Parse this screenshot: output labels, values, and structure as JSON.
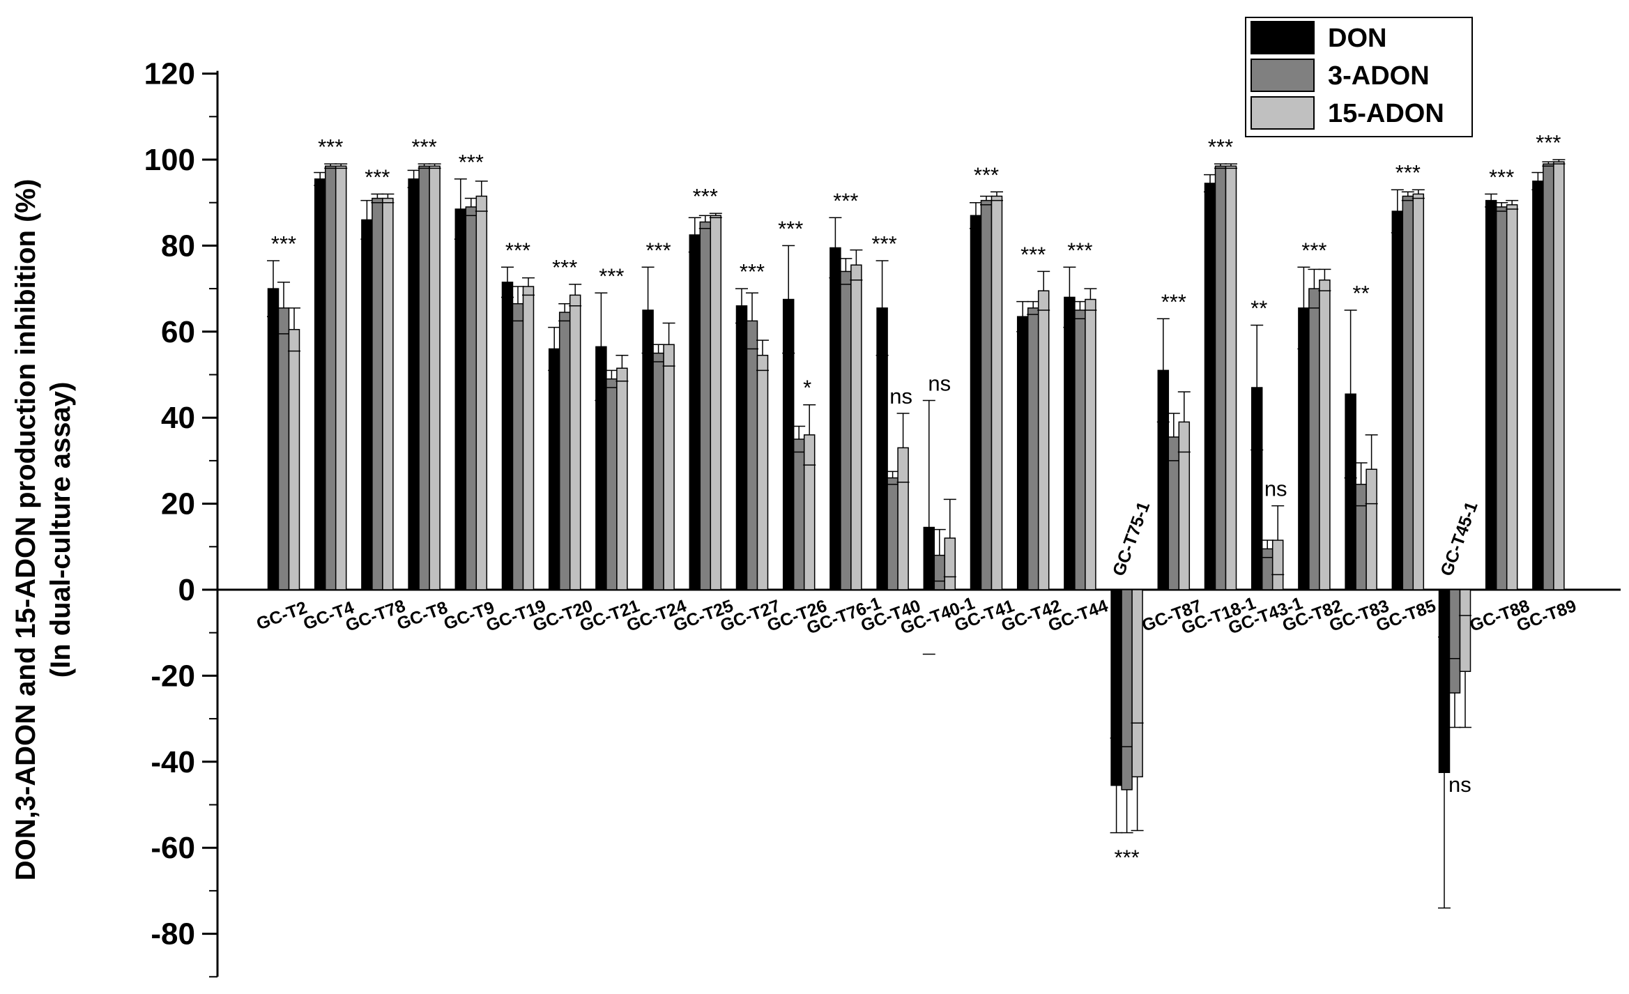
{
  "chart_data": {
    "type": "bar",
    "ylabel_lines": [
      "DON,3-ADON and 15-ADON production inhibition (%)",
      "(In dual-culture assay)"
    ],
    "xlabel": "",
    "ylim": [
      -90,
      120
    ],
    "yticks": [
      -80,
      -60,
      -40,
      -20,
      0,
      20,
      40,
      60,
      80,
      100,
      120
    ],
    "legend": {
      "position": "top-right",
      "entries": [
        "DON",
        "3-ADON",
        "15-ADON"
      ]
    },
    "series": [
      {
        "name": "DON",
        "color": "#000000"
      },
      {
        "name": "3-ADON",
        "color": "#808080"
      },
      {
        "name": "15-ADON",
        "color": "#c0c0c0"
      }
    ],
    "groups": [
      {
        "label": "GC-T2",
        "values": [
          70,
          65.5,
          60.5
        ],
        "errors": [
          6.5,
          6,
          5
        ],
        "sig": "***"
      },
      {
        "label": "GC-T4",
        "values": [
          95.5,
          98.5,
          98.5
        ],
        "errors": [
          1.5,
          0.5,
          0.5
        ],
        "sig": "***"
      },
      {
        "label": "GC-T78",
        "values": [
          86,
          91,
          91
        ],
        "errors": [
          4.5,
          1,
          1
        ],
        "sig": "***"
      },
      {
        "label": "GC-T8",
        "values": [
          95.5,
          98.5,
          98.5
        ],
        "errors": [
          2,
          0.5,
          0.5
        ],
        "sig": "***"
      },
      {
        "label": "GC-T9",
        "values": [
          88.5,
          89,
          91.5
        ],
        "errors": [
          7,
          2,
          3.5
        ],
        "sig": "***"
      },
      {
        "label": "GC-T19",
        "values": [
          71.5,
          66.5,
          70.5
        ],
        "errors": [
          3.5,
          4,
          2
        ],
        "sig": "***"
      },
      {
        "label": "GC-T20",
        "values": [
          56,
          64.5,
          68.5
        ],
        "errors": [
          5,
          2,
          2.5
        ],
        "sig": "***"
      },
      {
        "label": "GC-T21",
        "values": [
          56.5,
          49,
          51.5
        ],
        "errors": [
          12.5,
          2,
          3
        ],
        "sig": "***"
      },
      {
        "label": "GC-T24",
        "values": [
          65,
          55,
          57
        ],
        "errors": [
          10,
          2,
          5
        ],
        "sig": "***"
      },
      {
        "label": "GC-T25",
        "values": [
          82.5,
          85.5,
          87
        ],
        "errors": [
          4,
          1.5,
          0.5
        ],
        "sig": "***"
      },
      {
        "label": "GC-T27",
        "values": [
          66,
          62.5,
          54.5
        ],
        "errors": [
          4,
          6.5,
          3.5
        ],
        "sig": "***"
      },
      {
        "label": "GC-T26",
        "values": [
          67.5,
          35,
          36
        ],
        "errors": [
          12.5,
          3,
          7
        ],
        "sig": "***",
        "sig2": "*"
      },
      {
        "label": "GC-T76-1",
        "values": [
          79.5,
          74,
          75.5
        ],
        "errors": [
          7,
          3,
          3.5
        ],
        "sig": "***"
      },
      {
        "label": "GC-T40",
        "values": [
          65.5,
          26,
          33
        ],
        "errors": [
          11,
          1.5,
          8
        ],
        "sig": "***",
        "sig2": "ns"
      },
      {
        "label": "GC-T40-1",
        "values": [
          14.5,
          8,
          12
        ],
        "errors": [
          29.5,
          6,
          9
        ],
        "sig": "ns"
      },
      {
        "label": "GC-T41",
        "values": [
          87,
          90.5,
          91.5
        ],
        "errors": [
          3,
          1,
          1
        ],
        "sig": "***"
      },
      {
        "label": "GC-T42",
        "values": [
          63.5,
          65.5,
          69.5
        ],
        "errors": [
          3.5,
          1.5,
          4.5
        ],
        "sig": "***"
      },
      {
        "label": "GC-T44",
        "values": [
          68,
          65,
          67.5
        ],
        "errors": [
          7,
          2,
          2.5
        ],
        "sig": "***"
      },
      {
        "label": "GC-T75-1",
        "values": [
          -45.5,
          -46.5,
          -43.5
        ],
        "errors": [
          11,
          10,
          12.5
        ],
        "sig": "***"
      },
      {
        "label": "GC-T87",
        "values": [
          51,
          35.5,
          39
        ],
        "errors": [
          12,
          5.5,
          7
        ],
        "sig": "***"
      },
      {
        "label": "GC-T18-1",
        "values": [
          94.5,
          98.5,
          98.5
        ],
        "errors": [
          2,
          0.5,
          0.5
        ],
        "sig": "***"
      },
      {
        "label": "GC-T43-1",
        "values": [
          47,
          9.5,
          11.5
        ],
        "errors": [
          14.5,
          2,
          8
        ],
        "sig": "**",
        "sig2": "ns"
      },
      {
        "label": "GC-T82",
        "values": [
          65.5,
          70,
          72
        ],
        "errors": [
          9.5,
          4.5,
          2.5
        ],
        "sig": "***"
      },
      {
        "label": "GC-T83",
        "values": [
          45.5,
          24.5,
          28
        ],
        "errors": [
          19.5,
          5,
          8
        ],
        "sig": "**"
      },
      {
        "label": "GC-T85",
        "values": [
          88,
          91.5,
          92
        ],
        "errors": [
          5,
          1,
          1
        ],
        "sig": "***"
      },
      {
        "label": "GC-T45-1",
        "values": [
          -42.5,
          -24,
          -19
        ],
        "errors": [
          31.5,
          8,
          13
        ],
        "sig": "ns"
      },
      {
        "label": "GC-T88",
        "values": [
          90.5,
          89,
          89.5
        ],
        "errors": [
          1.5,
          1,
          1
        ],
        "sig": "***"
      },
      {
        "label": "GC-T89",
        "values": [
          95,
          99,
          99.5
        ],
        "errors": [
          2,
          0.5,
          0.5
        ],
        "sig": "***"
      }
    ]
  }
}
